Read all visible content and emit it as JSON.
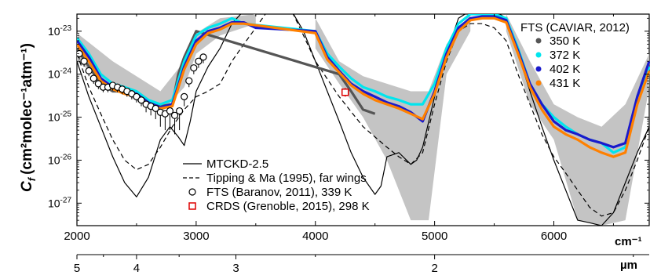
{
  "chart_data": {
    "type": "line",
    "ylabel_main": "C",
    "ylabel_sub": "f",
    "ylabel_units": "(cm²molec⁻¹atm⁻¹)",
    "x_axis": {
      "unit": "cm⁻¹",
      "range": [
        2000,
        6800
      ],
      "ticks": [
        "2000",
        "3000",
        "4000",
        "5000",
        "6000"
      ]
    },
    "x_axis_secondary": {
      "unit": "µm",
      "ticks": [
        "5",
        "4",
        "3",
        "2"
      ]
    },
    "y_axis": {
      "scale": "log",
      "range": [
        3e-28,
        2.5e-23
      ],
      "ticks": [
        {
          "label_base": "10",
          "label_exp": "-23",
          "value": 1e-23
        },
        {
          "label_base": "10",
          "label_exp": "-24",
          "value": 1e-24
        },
        {
          "label_base": "10",
          "label_exp": "-25",
          "value": 1e-25
        },
        {
          "label_base": "10",
          "label_exp": "-26",
          "value": 1e-26
        },
        {
          "label_base": "10",
          "label_exp": "-27",
          "value": 1e-27
        }
      ]
    },
    "legend_fts": {
      "title": "FTS (CAVIAR, 2012)",
      "placement": "top-right",
      "entries": [
        {
          "label": "350 K",
          "color": "#555555"
        },
        {
          "label": "372 K",
          "color": "#00e5ee"
        },
        {
          "label": "402 K",
          "color": "#1a1acc"
        },
        {
          "label": "431 K",
          "color": "#ff8000"
        }
      ]
    },
    "legend_models": {
      "placement": "bottom-center",
      "entries": [
        {
          "label": "MTCKD-2.5",
          "style": "solid",
          "color": "#000000"
        },
        {
          "label": "Tipping & Ma (1995), far wings",
          "style": "dashed",
          "color": "#000000"
        },
        {
          "label": "FTS (Baranov, 2011), 339 K",
          "style": "open-circle",
          "color": "#000000"
        },
        {
          "label": "CRDS (Grenoble, 2015), 298 K",
          "style": "open-square",
          "color": "#dd0000"
        }
      ]
    },
    "series": [
      {
        "name": "MTCKD-2.5",
        "color": "#000000",
        "dash": "none",
        "x": [
          2000,
          2100,
          2200,
          2300,
          2400,
          2500,
          2600,
          2700,
          2780,
          2850,
          2900,
          2950,
          3000,
          3100,
          3200,
          3300,
          3400,
          3500,
          3600,
          3700,
          3800,
          3900,
          4000,
          4100,
          4200,
          4300,
          4400,
          4500,
          4550,
          4600,
          4700,
          4800,
          4850,
          4900,
          5000,
          5100,
          5200,
          5300,
          5400,
          5500,
          5600,
          5700,
          5800,
          5900,
          6000,
          6100,
          6200,
          6300,
          6400,
          6500,
          6600,
          6700,
          6800
        ],
        "y": [
          2e-24,
          3e-25,
          6e-26,
          1.2e-26,
          3e-27,
          1.4e-27,
          4e-27,
          3e-26,
          6e-26,
          3.5e-26,
          2.2e-26,
          8e-26,
          4e-25,
          1.5e-24,
          4e-24,
          1.5e-23,
          3e-23,
          3e-23,
          3e-23,
          3e-23,
          3e-23,
          1e-23,
          2e-24,
          4e-25,
          8e-26,
          1.5e-26,
          4e-27,
          1.6e-27,
          2.5e-27,
          1.2e-26,
          1.5e-26,
          8e-27,
          1e-26,
          2e-26,
          3e-25,
          3e-24,
          2e-23,
          3e-23,
          3e-23,
          3e-23,
          2e-23,
          3e-24,
          4e-25,
          6e-26,
          1e-26,
          2e-27,
          4e-28,
          3.5e-28,
          3e-28,
          6e-28,
          3e-27,
          1.5e-26,
          6e-26
        ]
      },
      {
        "name": "Tipping & Ma (1995), far wings",
        "color": "#000000",
        "dash": "6,4",
        "x": [
          2000,
          2100,
          2200,
          2300,
          2400,
          2500,
          2600,
          2700,
          2800,
          2900,
          3000,
          3100,
          3200,
          3300,
          3400,
          3500,
          3600,
          3800,
          3900,
          4000,
          4200,
          4400,
          4600,
          4700,
          4800,
          4900,
          5000,
          5100,
          5200,
          5300,
          5400,
          5500,
          5600,
          5700,
          5800,
          5900,
          6000,
          6100,
          6200,
          6300,
          6400,
          6500,
          6600,
          6700,
          6800
        ],
        "y": [
          3e-24,
          5e-25,
          1.2e-25,
          3e-26,
          1e-26,
          6e-27,
          8e-27,
          2e-26,
          6e-26,
          1.5e-25,
          3e-25,
          4e-25,
          6e-25,
          2e-24,
          5e-24,
          1.2e-23,
          3e-23,
          3e-23,
          8e-24,
          2e-24,
          3e-25,
          6e-26,
          2e-26,
          1.2e-26,
          8e-27,
          1.5e-26,
          2e-25,
          2e-24,
          1e-23,
          1.5e-23,
          1.5e-23,
          1.2e-23,
          6e-24,
          1e-24,
          2e-25,
          4e-26,
          1.2e-26,
          5e-27,
          2e-27,
          8e-28,
          5e-28,
          6e-28,
          2e-27,
          1e-26,
          6e-26
        ]
      },
      {
        "name": "350 K",
        "color": "#555555",
        "dash": "none",
        "x": [
          2000,
          2100,
          2200,
          2300,
          2400,
          2500,
          2600,
          2700,
          2800,
          2850,
          2900,
          2950,
          3000,
          4200,
          4300,
          4400,
          4500
        ],
        "y": [
          4e-24,
          1.5e-24,
          6e-25,
          4e-25,
          4e-25,
          3e-25,
          2e-25,
          1.8e-25,
          2e-25,
          1e-24,
          2.5e-24,
          5e-24,
          1e-23,
          1e-24,
          4e-25,
          1.5e-25,
          1.2e-25
        ]
      },
      {
        "name": "372 K",
        "color": "#00e5ee",
        "dash": "none",
        "x": [
          2000,
          2100,
          2200,
          2300,
          2400,
          2500,
          2600,
          2700,
          2800,
          2900,
          3000,
          3100,
          3200,
          3300,
          3400,
          4000,
          4100,
          4200,
          4300,
          4400,
          4500,
          4600,
          4700,
          4800,
          4900,
          5000,
          5100,
          5200,
          5300,
          5400,
          5500,
          5600,
          5700,
          5800,
          5900,
          6000,
          6100,
          6200,
          6300,
          6400,
          6500,
          6600,
          6700,
          6800
        ],
        "y": [
          7e-24,
          3e-24,
          1e-24,
          6e-25,
          5e-25,
          4e-25,
          2.5e-25,
          2e-25,
          2.5e-25,
          2e-24,
          8e-24,
          1.2e-23,
          1.5e-23,
          2e-23,
          1.5e-23,
          1e-23,
          3e-24,
          1.5e-24,
          8e-25,
          5e-25,
          4e-25,
          3e-25,
          2.5e-25,
          2e-25,
          2e-25,
          6e-25,
          4e-24,
          1.5e-23,
          2.5e-23,
          2.5e-23,
          2.5e-23,
          2e-23,
          4e-24,
          6e-25,
          2e-25,
          1e-25,
          6e-26,
          4e-26,
          3e-26,
          2.5e-26,
          1.5e-26,
          2e-26,
          3e-25,
          1.5e-24
        ]
      },
      {
        "name": "402 K",
        "color": "#1a1acc",
        "dash": "none",
        "x": [
          2000,
          2100,
          2200,
          2300,
          2400,
          2500,
          2600,
          2700,
          2800,
          2900,
          3000,
          3100,
          3200,
          3300,
          3400,
          3500,
          4000,
          4100,
          4200,
          4300,
          4400,
          4500,
          4600,
          4700,
          4800,
          4900,
          5000,
          5100,
          5200,
          5300,
          5400,
          5500,
          5600,
          5700,
          5800,
          5900,
          6000,
          6100,
          6200,
          6300,
          6400,
          6500,
          6600,
          6700,
          6800
        ],
        "y": [
          6e-24,
          2.5e-24,
          8e-25,
          5e-25,
          4e-25,
          3.5e-25,
          2.2e-25,
          1.7e-25,
          2e-25,
          1.5e-24,
          6e-24,
          1e-23,
          1.2e-23,
          1.6e-23,
          1.6e-23,
          1.2e-23,
          1e-23,
          2.5e-24,
          1.2e-24,
          6e-25,
          4e-25,
          3e-25,
          2.2e-25,
          1.8e-25,
          1.3e-25,
          8e-26,
          4e-25,
          3e-24,
          1.2e-23,
          2e-23,
          2.2e-23,
          2.2e-23,
          1.8e-23,
          3.5e-24,
          6e-25,
          2e-25,
          8e-26,
          5e-26,
          4e-26,
          3e-26,
          2.5e-26,
          2e-26,
          2.5e-26,
          3e-25,
          2e-24
        ]
      },
      {
        "name": "431 K",
        "color": "#ff8000",
        "dash": "none",
        "x": [
          2000,
          2100,
          2200,
          2300,
          2400,
          2500,
          2600,
          2700,
          2800,
          2900,
          3000,
          3100,
          3200,
          3300,
          3400,
          4000,
          4100,
          4200,
          4300,
          4400,
          4500,
          4600,
          4700,
          4800,
          4900,
          5000,
          5100,
          5200,
          5300,
          5400,
          5500,
          5600,
          5700,
          5800,
          5900,
          6000,
          6100,
          6200,
          6300,
          6400,
          6500,
          6600,
          6700,
          6800
        ],
        "y": [
          5e-24,
          2e-24,
          7e-25,
          4.5e-25,
          3.5e-25,
          3e-25,
          2e-25,
          1.6e-25,
          1.8e-25,
          1.3e-24,
          5e-24,
          9e-24,
          1.1e-23,
          1.5e-23,
          1.5e-23,
          9e-24,
          2.2e-24,
          1.1e-24,
          5.5e-25,
          3.5e-25,
          2.5e-25,
          2e-25,
          1.6e-25,
          1.2e-25,
          9e-26,
          3.5e-25,
          2.5e-24,
          1e-23,
          1.8e-23,
          2e-23,
          2e-23,
          1.6e-23,
          3e-24,
          5e-25,
          1.5e-25,
          6e-26,
          4e-26,
          3e-26,
          2e-26,
          1.5e-26,
          1.2e-26,
          1.5e-26,
          2e-25,
          1.2e-24
        ]
      }
    ],
    "measurements_baranov": {
      "x": [
        2020,
        2060,
        2100,
        2140,
        2180,
        2220,
        2260,
        2300,
        2340,
        2380,
        2420,
        2460,
        2500,
        2540,
        2580,
        2620,
        2660,
        2700,
        2740,
        2780,
        2820,
        2860,
        2900,
        2940,
        2980,
        3020,
        3060
      ],
      "y": [
        3e-24,
        2e-24,
        1.2e-24,
        8e-25,
        6e-25,
        5e-25,
        5e-25,
        5.5e-25,
        5e-25,
        4.5e-25,
        4e-25,
        3.5e-25,
        3e-25,
        2.5e-25,
        2e-25,
        1.8e-25,
        1.6e-25,
        1.3e-25,
        1.2e-25,
        1.4e-25,
        1.1e-25,
        1.4e-25,
        3e-25,
        7e-25,
        1.4e-24,
        2e-24,
        2.5e-24
      ],
      "err_low": [
        2.2e-24,
        1.5e-24,
        9e-25,
        6e-25,
        4.5e-25,
        3.8e-25,
        3.8e-25,
        4.2e-25,
        3.8e-25,
        3.4e-25,
        3e-25,
        2.6e-25,
        2.2e-25,
        1.8e-25,
        1.3e-25,
        1.1e-25,
        9e-26,
        6e-26,
        5e-26,
        5e-26,
        4e-26,
        5e-26,
        1.8e-25,
        5e-25,
        1e-24,
        1.4e-24,
        1.8e-24
      ]
    },
    "measurements_crds": {
      "x": [
        4250
      ],
      "y": [
        3.8e-25
      ],
      "err_low": [
        3e-25
      ],
      "err_high": [
        4.8e-25
      ]
    },
    "band_extent": {
      "regions": [
        {
          "x": [
            2000,
            2300,
            2700,
            2900,
            3000,
            3200,
            3500
          ],
          "upper": [
            9e-24,
            2e-24,
            4e-25,
            2e-24,
            9e-24,
            2e-23,
            2.5e-23
          ],
          "lower": [
            2e-24,
            5e-25,
            1.2e-25,
            5e-25,
            3e-24,
            8e-24,
            1.5e-23
          ]
        },
        {
          "x": [
            4000,
            4200,
            4400,
            4600,
            4800,
            4950,
            5100,
            5300
          ],
          "upper": [
            2e-23,
            2e-24,
            9e-25,
            6e-25,
            4e-25,
            4e-25,
            5e-24,
            2.5e-23
          ],
          "lower": [
            4e-24,
            6e-25,
            1e-25,
            1e-26,
            4e-28,
            4e-28,
            1e-24,
            1e-23
          ]
        },
        {
          "x": [
            5600,
            5800,
            6000,
            6200,
            6400,
            6600,
            6800
          ],
          "upper": [
            2.5e-23,
            2e-24,
            2e-25,
            1e-25,
            6e-26,
            2e-25,
            3e-24
          ],
          "lower": [
            1e-23,
            2e-25,
            3e-26,
            4e-28,
            3e-28,
            4e-28,
            5e-25
          ]
        }
      ]
    }
  }
}
